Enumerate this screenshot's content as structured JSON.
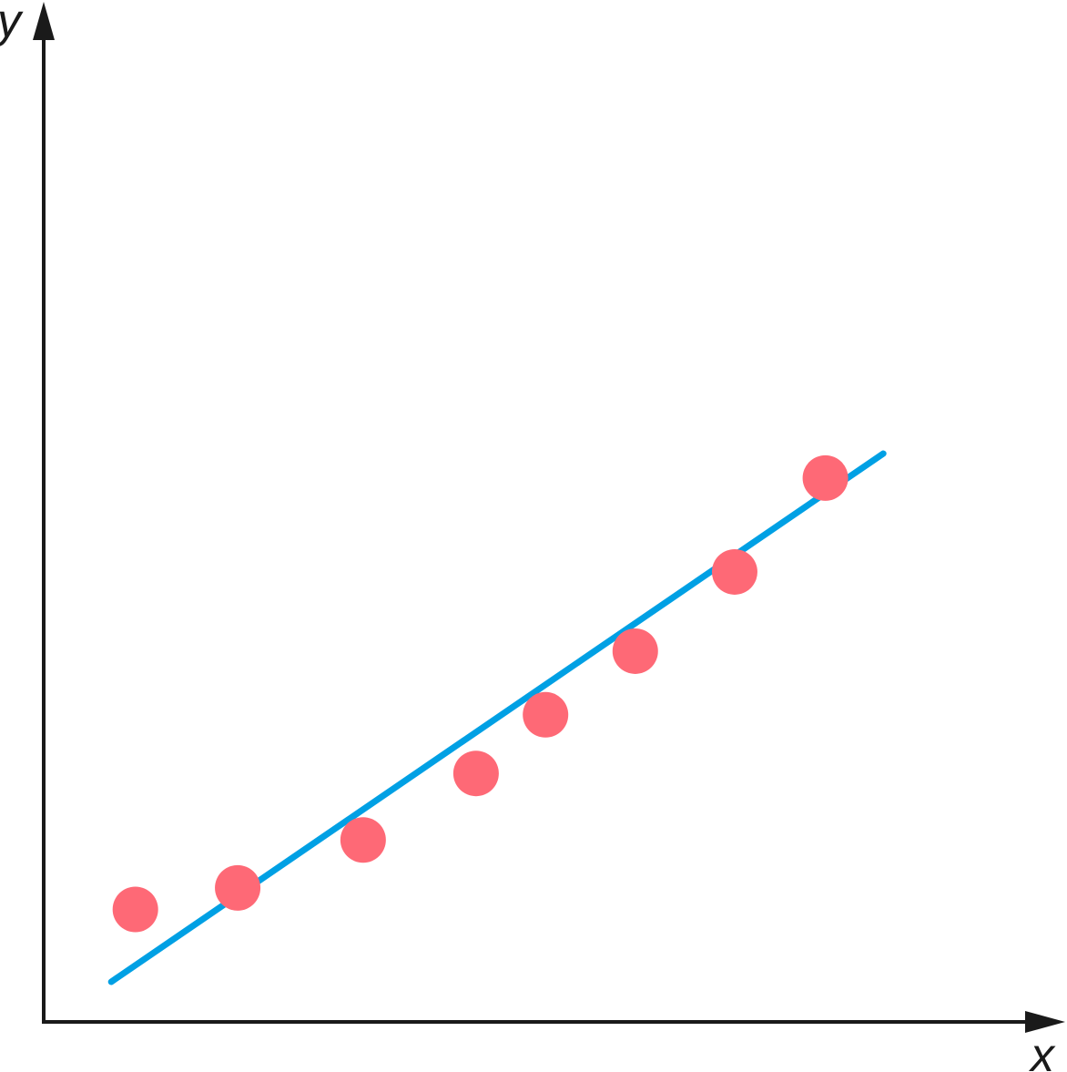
{
  "chart_data": {
    "type": "scatter",
    "title": "",
    "xlabel": "x",
    "ylabel": "y",
    "x_ticks": [],
    "y_ticks": [],
    "xlim": [
      0,
      100
    ],
    "ylim": [
      0,
      100
    ],
    "grid": false,
    "legend": "none",
    "series": [
      {
        "kind": "points",
        "color": "#fe6976",
        "points": [
          {
            "x": 9.5,
            "y": 11.5
          },
          {
            "x": 20.1,
            "y": 13.7
          },
          {
            "x": 33.1,
            "y": 18.6
          },
          {
            "x": 44.8,
            "y": 25.4
          },
          {
            "x": 52.0,
            "y": 31.4
          },
          {
            "x": 61.3,
            "y": 37.9
          },
          {
            "x": 71.6,
            "y": 46.0
          },
          {
            "x": 81.0,
            "y": 55.6
          }
        ]
      },
      {
        "kind": "fit-line",
        "color": "#00a0e4",
        "points": [
          {
            "x": 7.0,
            "y": 4.1
          },
          {
            "x": 87.0,
            "y": 58.1
          }
        ]
      }
    ]
  },
  "colors": {
    "axis": "#1a1a1a",
    "background": "#ffffff"
  }
}
